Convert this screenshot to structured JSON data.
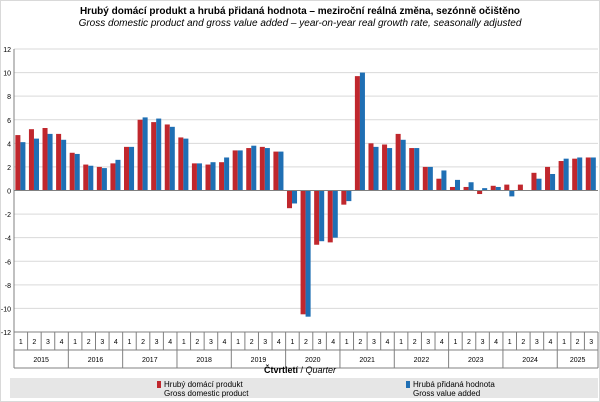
{
  "header": {
    "title": "Hrubý domácí produkt a hrubá přidaná hodnota – meziroční reálná změna, sezónně očištěno",
    "subtitle": "Gross domestic product and gross value added – year-on-year real growth rate, seasonally adjusted"
  },
  "axis": {
    "xlabel_bold": "Čtvrtletí",
    "xlabel_sep": " / ",
    "xlabel_italic": "Quarter"
  },
  "legend": {
    "gdp_cz": "Hrubý domácí produkt",
    "gdp_en": "Gross domestic product",
    "gva_cz": "Hrubá přidaná hodnota",
    "gva_en": "Gross value added"
  },
  "colors": {
    "gdp": "#c0272d",
    "gva": "#1f6fb4",
    "grid": "#d9d9d9",
    "axis": "#808080"
  },
  "chart_data": {
    "type": "bar",
    "title": "Hrubý domácí produkt a hrubá přidaná hodnota – meziroční reálná změna, sezónně očištěno",
    "subtitle": "Gross domestic product and gross value added – year-on-year real growth rate, seasonally adjusted",
    "xlabel": "Čtvrtletí / Quarter",
    "ylabel": "",
    "ylim": [
      -12,
      12
    ],
    "yticks": [
      -12,
      -10,
      -8,
      -6,
      -4,
      -2,
      0,
      2,
      4,
      6,
      8,
      10,
      12
    ],
    "grid": true,
    "legend_position": "bottom",
    "years": [
      "2015",
      "2016",
      "2017",
      "2018",
      "2019",
      "2020",
      "2021",
      "2022",
      "2023",
      "2024",
      "2025"
    ],
    "quarters_per_year": [
      4,
      4,
      4,
      4,
      4,
      4,
      4,
      4,
      4,
      4,
      3
    ],
    "categories": [
      "1",
      "2",
      "3",
      "4",
      "1",
      "2",
      "3",
      "4",
      "1",
      "2",
      "3",
      "4",
      "1",
      "2",
      "3",
      "4",
      "1",
      "2",
      "3",
      "4",
      "1",
      "2",
      "3",
      "4",
      "1",
      "2",
      "3",
      "4",
      "1",
      "2",
      "3",
      "4",
      "1",
      "2",
      "3",
      "4",
      "1",
      "2",
      "3",
      "4",
      "1",
      "2",
      "3"
    ],
    "series": [
      {
        "name": "Hrubý domácí produkt",
        "values": [
          4.7,
          5.2,
          5.3,
          4.8,
          3.2,
          2.2,
          2.0,
          2.3,
          3.7,
          6.0,
          5.8,
          5.6,
          4.5,
          2.3,
          2.2,
          2.4,
          3.4,
          3.6,
          3.7,
          3.3,
          -1.5,
          -10.5,
          -4.6,
          -4.4,
          -1.2,
          9.7,
          4.0,
          3.9,
          4.8,
          3.6,
          2.0,
          1.0,
          0.3,
          0.3,
          -0.3,
          0.4,
          0.5,
          0.5,
          1.5,
          2.0,
          2.5,
          2.7,
          2.8
        ]
      },
      {
        "name": "Hrubá přidaná hodnota",
        "values": [
          4.1,
          4.4,
          4.8,
          4.3,
          3.1,
          2.1,
          1.9,
          2.6,
          3.7,
          6.2,
          6.1,
          5.4,
          4.4,
          2.3,
          2.4,
          2.8,
          3.4,
          3.8,
          3.6,
          3.3,
          -1.1,
          -10.7,
          -4.3,
          -4.0,
          -0.9,
          10.0,
          3.7,
          3.6,
          4.3,
          3.6,
          2.0,
          1.7,
          0.9,
          0.7,
          0.2,
          0.3,
          -0.5,
          0.0,
          1.0,
          1.4,
          2.7,
          2.8,
          2.8
        ]
      }
    ]
  }
}
